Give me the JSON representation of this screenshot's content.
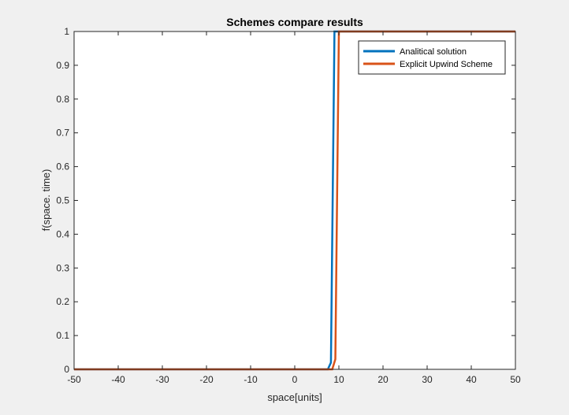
{
  "chart_data": {
    "type": "line",
    "title": "Schemes compare results",
    "xlabel": "space[units]",
    "ylabel": "f(space. time)",
    "xlim": [
      -50,
      50
    ],
    "ylim": [
      0,
      1
    ],
    "xticks": [
      -50,
      -40,
      -30,
      -20,
      -10,
      0,
      10,
      20,
      30,
      40,
      50
    ],
    "yticks": [
      0,
      0.1,
      0.2,
      0.3,
      0.4,
      0.5,
      0.6,
      0.7,
      0.8,
      0.9,
      1
    ],
    "xtick_labels": [
      "-50",
      "-40",
      "-30",
      "-20",
      "-10",
      "0",
      "10",
      "20",
      "30",
      "40",
      "50"
    ],
    "ytick_labels": [
      "0",
      "0.1",
      "0.2",
      "0.3",
      "0.4",
      "0.5",
      "0.6",
      "0.7",
      "0.8",
      "0.9",
      "1"
    ],
    "grid": false,
    "legend_position": "top-right",
    "series": [
      {
        "name": "Analitical solution",
        "color": "#0072BD",
        "x": [
          -50,
          7.5,
          8.2,
          9.0,
          50
        ],
        "y": [
          0,
          0,
          0.02,
          1,
          1
        ]
      },
      {
        "name": "Explicit Upwind Scheme",
        "color": "#D95319",
        "x": [
          -50,
          8.5,
          9.2,
          10.0,
          50
        ],
        "y": [
          0,
          0,
          0.03,
          1,
          1
        ]
      }
    ]
  }
}
